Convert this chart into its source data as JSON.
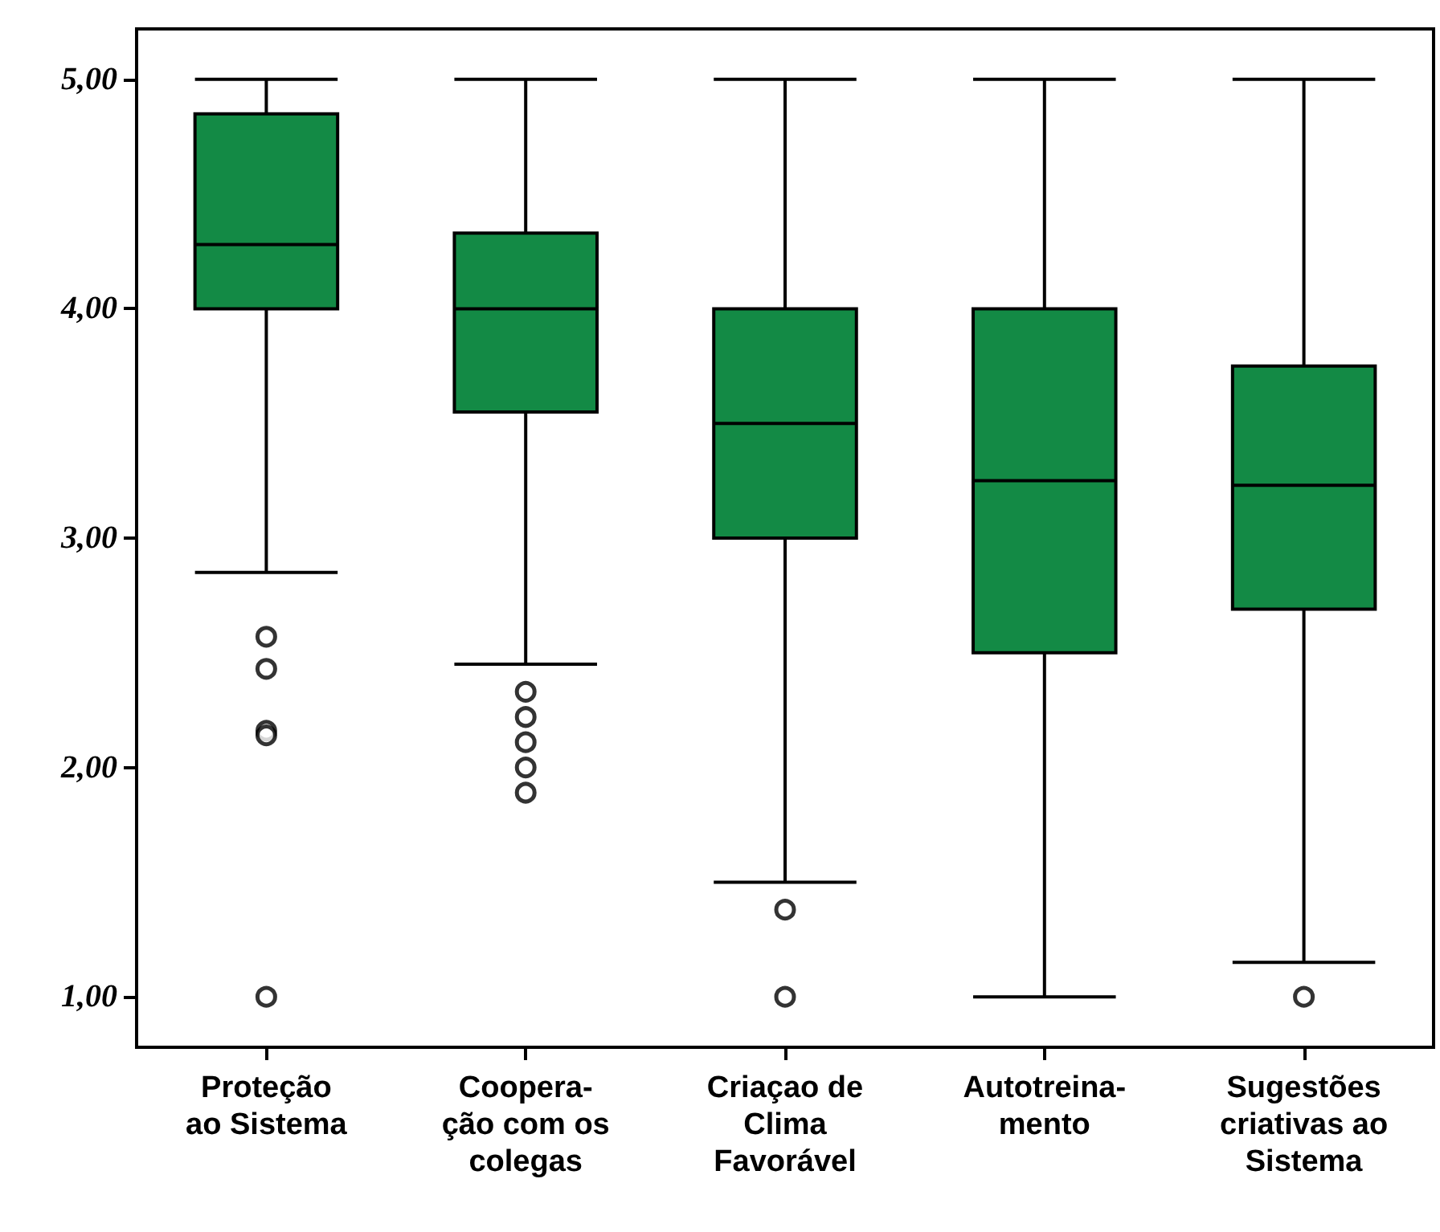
{
  "chart_data": {
    "type": "box",
    "categories": [
      "Proteção\nao Sistema",
      "Coopera-\nção com os\ncolegas",
      "Criaçao de\nClima\nFavorável",
      "Autotreina-\nmento",
      "Sugestões\ncriativas ao\nSistema"
    ],
    "color": "#138a45",
    "boxes": [
      {
        "low": 2.85,
        "q1": 4.0,
        "median": 4.28,
        "q3": 4.85,
        "high": 5.0,
        "outliers": [
          2.57,
          2.43,
          2.16,
          2.14,
          1.0
        ]
      },
      {
        "low": 2.45,
        "q1": 3.55,
        "median": 4.0,
        "q3": 4.33,
        "high": 5.0,
        "outliers": [
          2.33,
          2.22,
          2.11,
          2.0,
          1.89
        ]
      },
      {
        "low": 1.5,
        "q1": 3.0,
        "median": 3.5,
        "q3": 4.0,
        "high": 5.0,
        "outliers": [
          1.38,
          1.0
        ]
      },
      {
        "low": 1.0,
        "q1": 2.5,
        "median": 3.25,
        "q3": 4.0,
        "high": 5.0
      },
      {
        "low": 1.15,
        "q1": 2.69,
        "median": 3.23,
        "q3": 3.75,
        "high": 5.0,
        "outliers": [
          1.0
        ]
      }
    ],
    "ylim": [
      0.78,
      5.22
    ],
    "yticks": [
      {
        "value": 1,
        "label": "1,00"
      },
      {
        "value": 2,
        "label": "2,00"
      },
      {
        "value": 3,
        "label": "3,00"
      },
      {
        "value": 4,
        "label": "4,00"
      },
      {
        "value": 5,
        "label": "5,00"
      }
    ],
    "grid": false
  }
}
